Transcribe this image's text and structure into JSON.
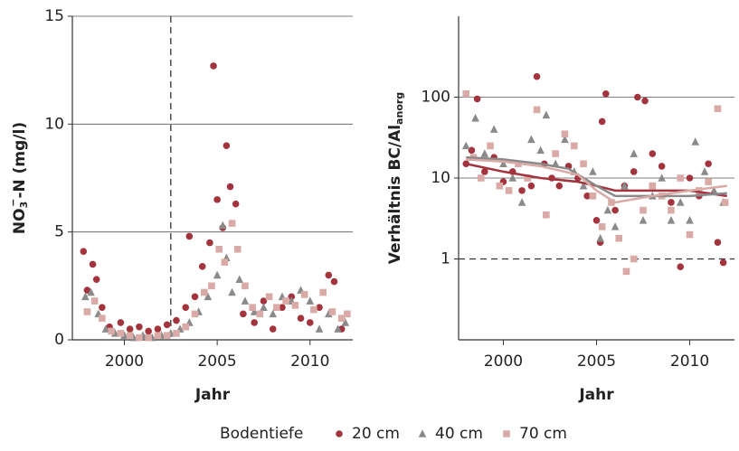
{
  "chart_data": [
    {
      "type": "scatter",
      "xlabel": "Jahr",
      "ylabel_parts": [
        {
          "text": "NO"
        },
        {
          "text": "3",
          "shift": "sub"
        },
        {
          "text": "−",
          "shift": "sup"
        },
        {
          "text": "-N (mg/l)"
        }
      ],
      "xlim": [
        1997.2,
        2012.3
      ],
      "xticks": [
        2000,
        2005,
        2010
      ],
      "ylim": [
        0,
        15
      ],
      "yticks": [
        0,
        5,
        10,
        15
      ],
      "grid": true,
      "log_y": false,
      "reference_lines": [
        {
          "axis": "x",
          "value": 2002.5,
          "style": "dashed"
        }
      ],
      "series": [
        {
          "name": "20 cm",
          "color": "#a3343e",
          "marker": "circle",
          "x": [
            1997.8,
            1998.0,
            1998.3,
            1998.5,
            1998.8,
            1999.2,
            1999.8,
            2000.3,
            2000.8,
            2001.3,
            2001.8,
            2002.3,
            2002.8,
            2003.3,
            2003.5,
            2003.8,
            2004.2,
            2004.6,
            2004.8,
            2005.0,
            2005.3,
            2005.5,
            2005.7,
            2006.0,
            2006.4,
            2007.0,
            2007.5,
            2008.0,
            2008.5,
            2009.0,
            2009.5,
            2010.0,
            2010.5,
            2011.0,
            2011.3,
            2011.7
          ],
          "values": [
            4.1,
            2.3,
            3.5,
            2.8,
            1.5,
            0.6,
            0.8,
            0.5,
            0.6,
            0.4,
            0.5,
            0.7,
            0.9,
            1.5,
            4.8,
            2.0,
            3.4,
            4.5,
            12.7,
            6.5,
            5.2,
            9.0,
            7.1,
            6.3,
            1.2,
            0.8,
            1.8,
            0.5,
            1.5,
            2.0,
            1.0,
            0.8,
            1.5,
            3.0,
            2.7,
            0.5
          ]
        },
        {
          "name": "40 cm",
          "color": "#8a8a8a",
          "marker": "triangle",
          "x": [
            1997.9,
            1998.2,
            1998.6,
            1999.0,
            1999.5,
            2000.0,
            2000.5,
            2001.0,
            2001.5,
            2002.0,
            2002.5,
            2003.0,
            2003.5,
            2004.0,
            2004.5,
            2005.0,
            2005.3,
            2005.5,
            2005.8,
            2006.2,
            2006.5,
            2007.0,
            2007.5,
            2008.0,
            2008.5,
            2009.0,
            2009.5,
            2010.0,
            2010.5,
            2011.0,
            2011.5,
            2011.9
          ],
          "values": [
            2.0,
            2.2,
            1.2,
            0.5,
            0.3,
            0.2,
            0.1,
            0.2,
            0.1,
            0.2,
            0.3,
            0.5,
            0.8,
            1.3,
            2.0,
            3.0,
            5.3,
            3.8,
            2.2,
            2.8,
            1.8,
            1.3,
            1.5,
            1.2,
            2.0,
            1.8,
            2.3,
            1.8,
            0.5,
            1.2,
            0.5,
            0.8
          ]
        },
        {
          "name": "70 cm",
          "color": "#d9aaa6",
          "marker": "square",
          "x": [
            1998.0,
            1998.4,
            1998.8,
            1999.3,
            1999.8,
            2000.3,
            2000.8,
            2001.3,
            2001.8,
            2002.3,
            2002.8,
            2003.3,
            2003.8,
            2004.3,
            2004.7,
            2005.1,
            2005.4,
            2005.8,
            2006.1,
            2006.5,
            2006.9,
            2007.3,
            2007.8,
            2008.2,
            2008.7,
            2009.2,
            2009.7,
            2010.2,
            2010.7,
            2011.2,
            2011.7,
            2012.0
          ],
          "values": [
            1.3,
            1.8,
            1.0,
            0.4,
            0.3,
            0.2,
            0.1,
            0.1,
            0.2,
            0.2,
            0.3,
            0.6,
            1.2,
            2.2,
            2.5,
            4.2,
            3.6,
            5.4,
            4.2,
            2.5,
            1.5,
            1.2,
            2.0,
            1.5,
            1.8,
            1.6,
            2.1,
            1.4,
            2.2,
            1.3,
            1.0,
            1.2
          ]
        }
      ]
    },
    {
      "type": "scatter",
      "xlabel": "Jahr",
      "ylabel_parts": [
        {
          "text": "Verhältnis BC/Al"
        },
        {
          "text": "anorg",
          "shift": "sub"
        }
      ],
      "xlim": [
        1997.6,
        2012.4
      ],
      "xticks": [
        2000,
        2005,
        2010
      ],
      "ylim": [
        0.1,
        1000
      ],
      "yticks": [
        1,
        10,
        100
      ],
      "grid": true,
      "log_y": true,
      "reference_lines": [
        {
          "axis": "y",
          "value": 1,
          "style": "dashed"
        }
      ],
      "series": [
        {
          "name": "20 cm",
          "color": "#a3343e",
          "marker": "circle",
          "x": [
            1998.0,
            1998.3,
            1998.6,
            1999.0,
            1999.5,
            2000.0,
            2000.5,
            2001.0,
            2001.5,
            2001.8,
            2002.2,
            2002.6,
            2003.0,
            2003.5,
            2004.0,
            2004.5,
            2005.0,
            2005.2,
            2005.3,
            2005.5,
            2006.0,
            2006.5,
            2007.0,
            2007.2,
            2007.6,
            2008.0,
            2008.5,
            2009.0,
            2009.5,
            2010.0,
            2010.5,
            2011.0,
            2011.5,
            2011.8
          ],
          "values": [
            15,
            22,
            95,
            12,
            18,
            9,
            12,
            7,
            8,
            180,
            15,
            10,
            8,
            14,
            10,
            6,
            3,
            1.6,
            50,
            110,
            4,
            8,
            12,
            100,
            90,
            20,
            14,
            5,
            0.8,
            10,
            6,
            15,
            1.6,
            0.9
          ],
          "trend": {
            "x": [
              1998,
              2000,
              2002,
              2004,
              2005,
              2006,
              2008,
              2010,
              2012
            ],
            "values": [
              15,
              12,
              10,
              9,
              8,
              7,
              7,
              7,
              6
            ]
          }
        },
        {
          "name": "40 cm",
          "color": "#8a8a8a",
          "marker": "triangle",
          "x": [
            1998.0,
            1998.5,
            1999.0,
            1999.5,
            2000.0,
            2000.5,
            2001.0,
            2001.5,
            2002.0,
            2002.3,
            2002.8,
            2003.3,
            2003.8,
            2004.3,
            2004.8,
            2005.2,
            2005.6,
            2006.0,
            2006.5,
            2007.0,
            2007.5,
            2008.0,
            2008.5,
            2009.0,
            2009.5,
            2010.0,
            2010.3,
            2010.8,
            2011.3,
            2011.8
          ],
          "values": [
            25,
            55,
            20,
            40,
            15,
            10,
            5,
            30,
            22,
            60,
            15,
            30,
            12,
            8,
            12,
            1.8,
            4,
            2.5,
            8,
            20,
            3,
            6,
            10,
            3,
            5,
            3,
            28,
            12,
            7,
            5
          ],
          "trend": {
            "x": [
              1998,
              2000,
              2002,
              2003.5,
              2005,
              2006,
              2008,
              2010,
              2012
            ],
            "values": [
              18,
              17,
              15,
              13,
              8,
              6,
              6,
              6,
              6.5
            ]
          }
        },
        {
          "name": "70 cm",
          "color": "#d9aaa6",
          "marker": "square",
          "x": [
            1998.0,
            1998.4,
            1998.8,
            1999.3,
            1999.8,
            2000.3,
            2000.8,
            2001.3,
            2001.8,
            2002.3,
            2002.8,
            2003.3,
            2003.8,
            2004.3,
            2004.8,
            2005.3,
            2005.8,
            2006.2,
            2006.6,
            2007.0,
            2007.5,
            2008.0,
            2008.5,
            2009.0,
            2009.5,
            2010.0,
            2010.5,
            2011.0,
            2011.5,
            2011.9
          ],
          "values": [
            110,
            18,
            10,
            25,
            8,
            7,
            15,
            10,
            70,
            3.5,
            20,
            35,
            25,
            15,
            6,
            2.5,
            5,
            1.8,
            0.7,
            1.0,
            4,
            8,
            6,
            4,
            10,
            2,
            7,
            9,
            72,
            5
          ],
          "trend": {
            "x": [
              1998,
              2000,
              2002,
              2004,
              2005,
              2006,
              2008,
              2010,
              2012
            ],
            "values": [
              17,
              16,
              14,
              11,
              7,
              5,
              6,
              7,
              8
            ]
          }
        }
      ]
    }
  ],
  "legend": {
    "title": "Bodentiefe"
  }
}
